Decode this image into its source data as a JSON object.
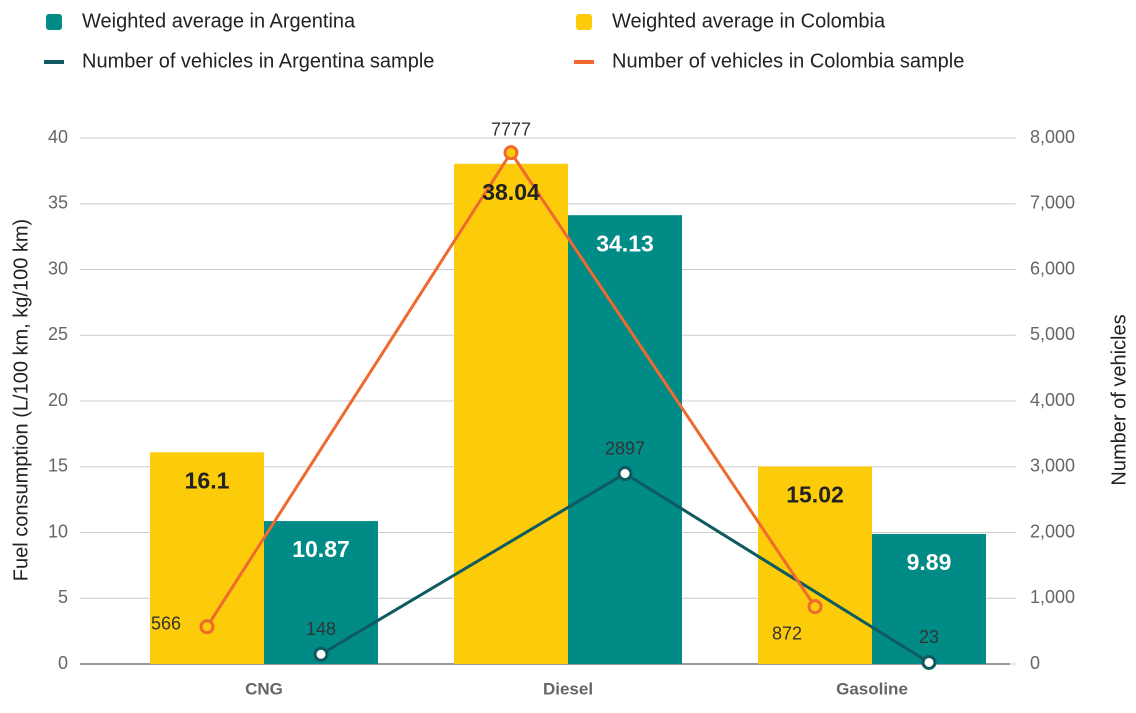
{
  "chart_data": {
    "type": "bar",
    "categories": [
      "CNG",
      "Diesel",
      "Gasoline"
    ],
    "series": [
      {
        "name": "Weighted average in Colombia",
        "color": "#fccc0a",
        "type": "bar",
        "values": [
          16.1,
          38.04,
          15.02
        ]
      },
      {
        "name": "Weighted average in Argentina",
        "color": "#008b87",
        "type": "bar",
        "values": [
          10.87,
          34.13,
          9.89
        ]
      },
      {
        "name": "Number of vehicles in Argentina sample",
        "color": "#0e5a60",
        "type": "line",
        "axis": "y2",
        "values": [
          148,
          2897,
          23
        ]
      },
      {
        "name": "Number of vehicles in Colombia sample",
        "color": "#ef6a2e",
        "type": "line",
        "axis": "y2",
        "values": [
          566,
          7777,
          872
        ]
      }
    ],
    "y_label": "Fuel consumption (L/100 km, kg/100 km)",
    "y2_label": "Number of vehicles",
    "ylim": [
      0,
      40
    ],
    "yticks": [
      0,
      5,
      10,
      15,
      20,
      25,
      30,
      35,
      40
    ],
    "y2lim": [
      0,
      8000
    ],
    "y2ticks": [
      0,
      {
        "value": 1000,
        "label": "1,000"
      },
      {
        "value": 2000,
        "label": "2,000"
      },
      {
        "value": 3000,
        "label": "3,000"
      },
      {
        "value": 4000,
        "label": "4,000"
      },
      {
        "value": 5000,
        "label": "5,000"
      },
      {
        "value": 6000,
        "label": "6,000"
      },
      {
        "value": 7000,
        "label": "7,000"
      },
      {
        "value": 8000,
        "label": "8,000"
      }
    ],
    "grid": true,
    "legend": "top"
  }
}
